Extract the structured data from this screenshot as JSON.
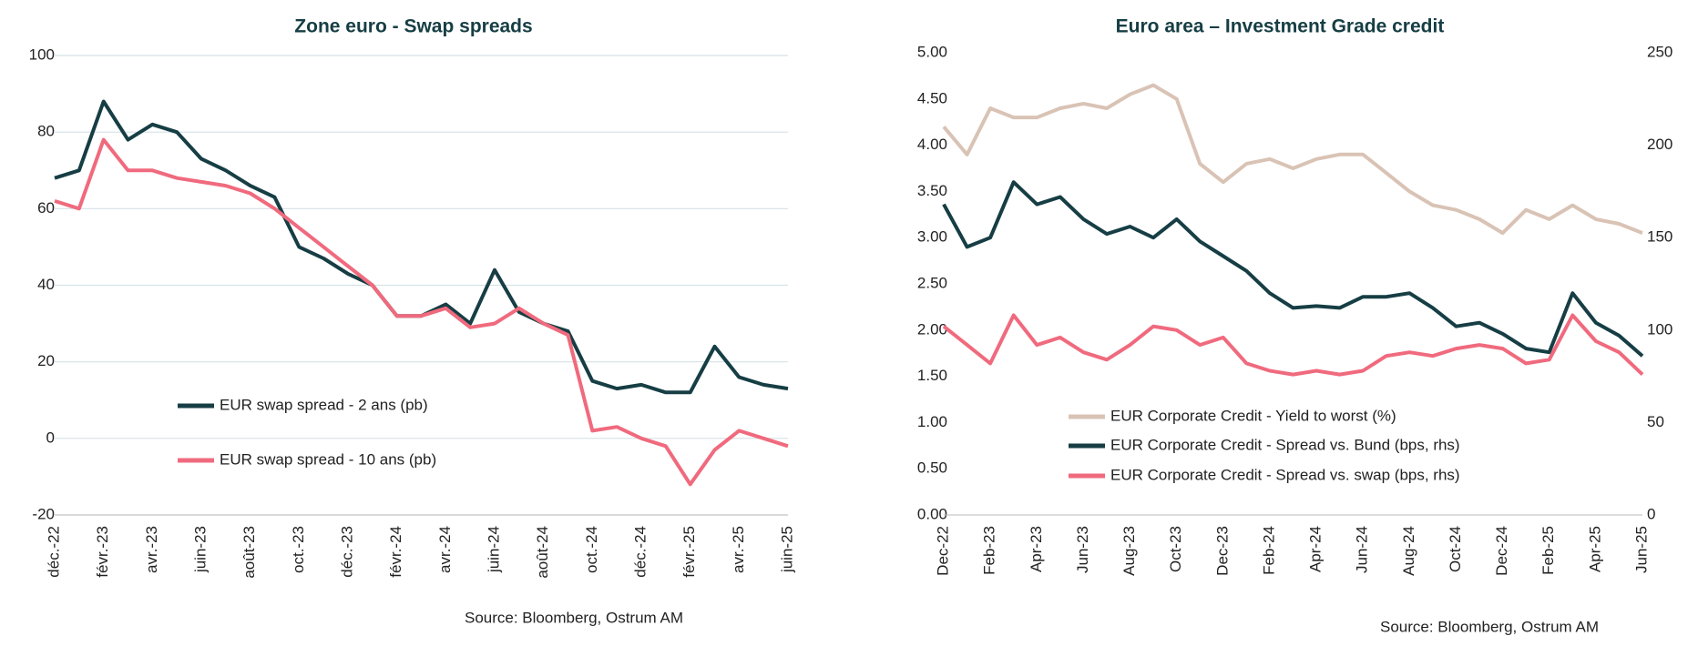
{
  "chart_data": [
    {
      "type": "line",
      "title": "Zone euro - Swap spreads",
      "source": "Source: Bloomberg, Ostrum AM",
      "categories": [
        "déc.-22",
        null,
        "févr.-23",
        null,
        "avr.-23",
        null,
        "juin-23",
        null,
        "août-23",
        null,
        "oct.-23",
        null,
        "déc.-23",
        null,
        "févr.-24",
        null,
        "avr.-24",
        null,
        "juin-24",
        null,
        "août-24",
        null,
        "oct.-24",
        null,
        "déc.-24",
        null,
        "févr.-25",
        null,
        "avr.-25",
        null,
        "juin-25"
      ],
      "ylim": [
        -20,
        100
      ],
      "yticks": [
        -20,
        0,
        20,
        40,
        60,
        80,
        100
      ],
      "grid": true,
      "series": [
        {
          "name": "EUR swap spread - 2 ans  (pb)",
          "color": "#163e44",
          "values": [
            68,
            70,
            88,
            78,
            82,
            80,
            73,
            70,
            66,
            63,
            50,
            47,
            43,
            40,
            32,
            32,
            35,
            30,
            44,
            33,
            30,
            28,
            15,
            13,
            14,
            12,
            12,
            24,
            16,
            14,
            13
          ]
        },
        {
          "name": "EUR swap spread - 10 ans  (pb)",
          "color": "#f06a7e",
          "values": [
            62,
            60,
            78,
            70,
            70,
            68,
            67,
            66,
            64,
            60,
            55,
            50,
            45,
            40,
            32,
            32,
            34,
            29,
            30,
            34,
            30,
            27,
            2,
            3,
            0,
            -2,
            -12,
            -3,
            2,
            0,
            -2
          ]
        }
      ]
    },
    {
      "type": "line",
      "title": "Euro area – Investment Grade credit",
      "source": "Source: Bloomberg, Ostrum AM",
      "categories": [
        "Dec-22",
        null,
        "Feb-23",
        null,
        "Apr-23",
        null,
        "Jun-23",
        null,
        "Aug-23",
        null,
        "Oct-23",
        null,
        "Dec-23",
        null,
        "Feb-24",
        null,
        "Apr-24",
        null,
        "Jun-24",
        null,
        "Aug-24",
        null,
        "Oct-24",
        null,
        "Dec-24",
        null,
        "Feb-25",
        null,
        "Apr-25",
        null,
        "Jun-25"
      ],
      "ylim": [
        0,
        5
      ],
      "yticks": [
        {
          "value": 0,
          "label": "0.00"
        },
        {
          "value": 0.5,
          "label": "0.50"
        },
        {
          "value": 1,
          "label": "1.00"
        },
        {
          "value": 1.5,
          "label": "1.50"
        },
        {
          "value": 2,
          "label": "2.00"
        },
        {
          "value": 2.5,
          "label": "2.50"
        },
        {
          "value": 3,
          "label": "3.00"
        },
        {
          "value": 3.5,
          "label": "3.50"
        },
        {
          "value": 4,
          "label": "4.00"
        },
        {
          "value": 4.5,
          "label": "4.50"
        },
        {
          "value": 5,
          "label": "5.00"
        }
      ],
      "y2lim": [
        0,
        250
      ],
      "y2ticks": [
        0,
        50,
        100,
        150,
        200,
        250
      ],
      "grid": false,
      "series": [
        {
          "name": "EUR Corporate Credit - Yield to worst  (%)",
          "color": "#d9c3b5",
          "values": [
            4.2,
            3.9,
            4.4,
            4.3,
            4.3,
            4.4,
            4.45,
            4.4,
            4.55,
            4.65,
            4.5,
            3.8,
            3.6,
            3.8,
            3.85,
            3.75,
            3.85,
            3.9,
            3.9,
            3.7,
            3.5,
            3.35,
            3.3,
            3.2,
            3.05,
            3.3,
            3.2,
            3.35,
            3.2,
            3.15,
            3.05
          ]
        },
        {
          "name": "EUR Corporate Credit - Spread vs. Bund  (bps, rhs)",
          "color": "#163e44",
          "axis": "y2",
          "values": [
            168,
            145,
            150,
            180,
            168,
            172,
            160,
            152,
            156,
            150,
            160,
            148,
            140,
            132,
            120,
            112,
            113,
            112,
            118,
            118,
            120,
            112,
            102,
            104,
            98,
            90,
            88,
            120,
            104,
            97,
            86
          ]
        },
        {
          "name": "EUR Corporate Credit - Spread vs. swap  (bps, rhs)",
          "color": "#f06a7e",
          "axis": "y2",
          "values": [
            102,
            92,
            82,
            108,
            92,
            96,
            88,
            84,
            92,
            102,
            100,
            92,
            96,
            82,
            78,
            76,
            78,
            76,
            78,
            86,
            88,
            86,
            90,
            92,
            90,
            82,
            84,
            108,
            94,
            88,
            76
          ]
        }
      ]
    }
  ]
}
